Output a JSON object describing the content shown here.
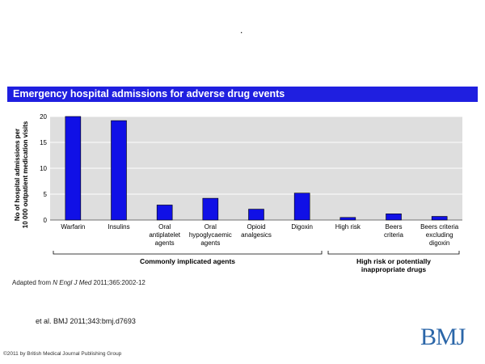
{
  "page": {
    "dot": ".",
    "source_prefix": "Adapted from ",
    "source_journal": "N Engl J Med",
    "source_suffix": " 2011;365:2002-12",
    "citation": "et al. BMJ 2011;343:bmj.d7693",
    "copyright": "©2011 by British Medical Journal Publishing Group",
    "logo": "BMJ"
  },
  "chart_data": {
    "type": "bar",
    "title": "Emergency hospital admissions for adverse drug events",
    "ylabel": [
      "No of hospital admissions per",
      "10 000 outpatient medication visits"
    ],
    "xlabel": "",
    "ylim": [
      0,
      20
    ],
    "yticks": [
      0,
      5,
      10,
      15,
      20
    ],
    "grid": true,
    "bar_color": "#1010e6",
    "categories": [
      [
        "Warfarin"
      ],
      [
        "Insulins"
      ],
      [
        "Oral",
        "antiplatelet",
        "agents"
      ],
      [
        "Oral",
        "hypoglycaemic",
        "agents"
      ],
      [
        "Opioid",
        "analgesics"
      ],
      [
        "Digoxin"
      ],
      [
        "High risk"
      ],
      [
        "Beers",
        "criteria"
      ],
      [
        "Beers criteria",
        "excluding",
        "digoxin"
      ]
    ],
    "values": [
      20.0,
      19.2,
      2.9,
      4.2,
      2.1,
      5.2,
      0.5,
      1.2,
      0.7
    ],
    "groups": [
      {
        "label": [
          "Commonly implicated agents"
        ],
        "start": 0,
        "end": 5
      },
      {
        "label": [
          "High risk or potentially",
          "inappropriate drugs"
        ],
        "start": 6,
        "end": 8
      }
    ]
  }
}
